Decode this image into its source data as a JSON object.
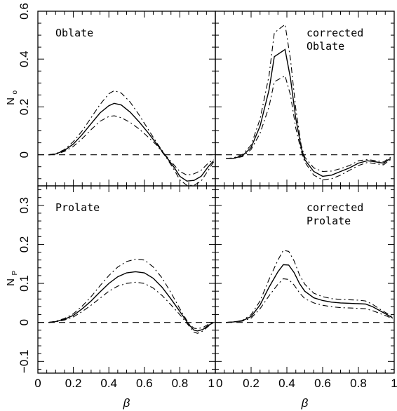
{
  "chart_data": [
    {
      "type": "line",
      "panel": "top-left",
      "annotation": [
        "Oblate"
      ],
      "ylabel": "N",
      "ylabel_subscript": "o",
      "xlabel": "",
      "xlim": [
        0,
        1
      ],
      "ylim": [
        -0.13,
        0.6
      ],
      "yticks": [
        "0",
        "0.2",
        "0.4",
        "0.6"
      ],
      "xticks": [],
      "series": [
        {
          "style": "solid",
          "x": [
            0.06,
            0.1,
            0.15,
            0.2,
            0.25,
            0.3,
            0.35,
            0.4,
            0.43,
            0.47,
            0.52,
            0.57,
            0.62,
            0.67,
            0.72,
            0.77,
            0.8,
            0.84,
            0.88,
            0.92,
            0.96,
            0.99
          ],
          "y": [
            0,
            0.003,
            0.018,
            0.045,
            0.085,
            0.13,
            0.175,
            0.205,
            0.215,
            0.208,
            0.178,
            0.138,
            0.093,
            0.045,
            -0.005,
            -0.055,
            -0.09,
            -0.11,
            -0.107,
            -0.09,
            -0.05,
            -0.025
          ]
        },
        {
          "style": "dash-dot",
          "x": [
            0.06,
            0.1,
            0.15,
            0.2,
            0.25,
            0.3,
            0.35,
            0.4,
            0.43,
            0.47,
            0.52,
            0.57,
            0.62,
            0.67,
            0.72,
            0.77,
            0.8,
            0.84,
            0.88,
            0.92,
            0.96,
            0.99
          ],
          "y": [
            0,
            0.004,
            0.022,
            0.055,
            0.1,
            0.155,
            0.21,
            0.255,
            0.268,
            0.258,
            0.22,
            0.167,
            0.108,
            0.05,
            -0.003,
            -0.045,
            -0.07,
            -0.085,
            -0.08,
            -0.065,
            -0.035,
            -0.02
          ]
        },
        {
          "style": "dash-dot",
          "x": [
            0.06,
            0.1,
            0.15,
            0.2,
            0.25,
            0.3,
            0.35,
            0.4,
            0.43,
            0.47,
            0.52,
            0.57,
            0.62,
            0.67,
            0.72,
            0.77,
            0.8,
            0.84,
            0.88,
            0.92,
            0.96,
            0.99
          ],
          "y": [
            0,
            0.002,
            0.014,
            0.035,
            0.068,
            0.105,
            0.14,
            0.16,
            0.163,
            0.155,
            0.135,
            0.108,
            0.075,
            0.04,
            -0.008,
            -0.065,
            -0.105,
            -0.128,
            -0.128,
            -0.11,
            -0.065,
            -0.03
          ]
        },
        {
          "style": "dashed",
          "x": [
            0,
            1
          ],
          "y": [
            0,
            0
          ]
        }
      ]
    },
    {
      "type": "line",
      "panel": "top-right",
      "annotation": [
        "corrected",
        "Oblate"
      ],
      "ylabel": "",
      "xlabel": "",
      "xlim": [
        0,
        1
      ],
      "ylim": [
        -0.13,
        0.6
      ],
      "yticks": [],
      "xticks": [],
      "series": [
        {
          "style": "solid",
          "x": [
            0.06,
            0.1,
            0.15,
            0.2,
            0.25,
            0.3,
            0.33,
            0.39,
            0.42,
            0.45,
            0.48,
            0.5,
            0.55,
            0.6,
            0.65,
            0.7,
            0.75,
            0.8,
            0.85,
            0.9,
            0.94,
            0.98
          ],
          "y": [
            -0.015,
            -0.015,
            -0.005,
            0.03,
            0.12,
            0.27,
            0.41,
            0.44,
            0.32,
            0.15,
            0.03,
            -0.02,
            -0.07,
            -0.09,
            -0.085,
            -0.07,
            -0.055,
            -0.035,
            -0.025,
            -0.03,
            -0.035,
            -0.015
          ]
        },
        {
          "style": "dash-dot",
          "x": [
            0.06,
            0.1,
            0.15,
            0.2,
            0.25,
            0.3,
            0.33,
            0.39,
            0.42,
            0.45,
            0.48,
            0.5,
            0.55,
            0.6,
            0.65,
            0.7,
            0.75,
            0.8,
            0.85,
            0.9,
            0.94,
            0.98
          ],
          "y": [
            -0.015,
            -0.013,
            0,
            0.04,
            0.15,
            0.33,
            0.51,
            0.545,
            0.4,
            0.19,
            0.04,
            -0.01,
            -0.055,
            -0.07,
            -0.068,
            -0.058,
            -0.045,
            -0.025,
            -0.02,
            -0.025,
            -0.03,
            -0.01
          ]
        },
        {
          "style": "dash-dot",
          "x": [
            0.06,
            0.1,
            0.15,
            0.2,
            0.25,
            0.3,
            0.33,
            0.39,
            0.42,
            0.45,
            0.48,
            0.5,
            0.55,
            0.6,
            0.65,
            0.7,
            0.75,
            0.8,
            0.85,
            0.9,
            0.94,
            0.98
          ],
          "y": [
            -0.015,
            -0.016,
            -0.008,
            0.022,
            0.09,
            0.2,
            0.305,
            0.33,
            0.25,
            0.11,
            0.015,
            -0.03,
            -0.085,
            -0.105,
            -0.1,
            -0.085,
            -0.065,
            -0.045,
            -0.032,
            -0.038,
            -0.042,
            -0.02
          ]
        },
        {
          "style": "dashed",
          "x": [
            0,
            1
          ],
          "y": [
            0,
            0
          ]
        }
      ]
    },
    {
      "type": "line",
      "panel": "bottom-left",
      "annotation": [
        "Prolate"
      ],
      "ylabel": "N",
      "ylabel_subscript": "P",
      "xlabel": "β",
      "xlim": [
        0,
        1
      ],
      "ylim": [
        -0.13,
        0.35
      ],
      "yticks": [
        "−0.1",
        "0",
        "0.1",
        "0.2",
        "0.3"
      ],
      "xticks": [
        "0",
        "0.2",
        "0.4",
        "0.6",
        "0.8",
        "1"
      ],
      "series": [
        {
          "style": "solid",
          "x": [
            0.06,
            0.1,
            0.15,
            0.2,
            0.25,
            0.3,
            0.35,
            0.4,
            0.45,
            0.5,
            0.55,
            0.6,
            0.65,
            0.7,
            0.75,
            0.8,
            0.85,
            0.88,
            0.9,
            0.93,
            0.96,
            0.99
          ],
          "y": [
            0,
            0.002,
            0.008,
            0.018,
            0.035,
            0.055,
            0.078,
            0.1,
            0.117,
            0.127,
            0.13,
            0.127,
            0.113,
            0.09,
            0.06,
            0.028,
            -0.005,
            -0.02,
            -0.022,
            -0.018,
            -0.008,
            0
          ]
        },
        {
          "style": "dash-dot",
          "x": [
            0.06,
            0.1,
            0.15,
            0.2,
            0.25,
            0.3,
            0.35,
            0.4,
            0.45,
            0.5,
            0.55,
            0.6,
            0.65,
            0.7,
            0.75,
            0.8,
            0.85,
            0.88,
            0.9,
            0.93,
            0.96,
            0.99
          ],
          "y": [
            0,
            0.003,
            0.01,
            0.022,
            0.042,
            0.066,
            0.094,
            0.12,
            0.142,
            0.156,
            0.162,
            0.16,
            0.142,
            0.114,
            0.076,
            0.035,
            -0.003,
            -0.015,
            -0.016,
            -0.013,
            -0.005,
            0
          ]
        },
        {
          "style": "dash-dot",
          "x": [
            0.06,
            0.1,
            0.15,
            0.2,
            0.25,
            0.3,
            0.35,
            0.4,
            0.45,
            0.5,
            0.55,
            0.6,
            0.65,
            0.7,
            0.75,
            0.8,
            0.85,
            0.88,
            0.9,
            0.93,
            0.96,
            0.99
          ],
          "y": [
            0,
            0.001,
            0.006,
            0.014,
            0.028,
            0.044,
            0.062,
            0.08,
            0.093,
            0.1,
            0.103,
            0.1,
            0.088,
            0.069,
            0.045,
            0.02,
            -0.008,
            -0.025,
            -0.028,
            -0.022,
            -0.01,
            0
          ]
        },
        {
          "style": "dashed",
          "x": [
            0,
            1
          ],
          "y": [
            0,
            0
          ]
        }
      ]
    },
    {
      "type": "line",
      "panel": "bottom-right",
      "annotation": [
        "corrected",
        "Prolate"
      ],
      "ylabel": "",
      "xlabel": "β",
      "xlim": [
        0,
        1
      ],
      "ylim": [
        -0.13,
        0.35
      ],
      "yticks": [],
      "xticks": [
        "0",
        "0.2",
        "0.4",
        "0.6",
        "0.8",
        "1"
      ],
      "series": [
        {
          "style": "solid",
          "x": [
            0.06,
            0.1,
            0.15,
            0.2,
            0.25,
            0.3,
            0.35,
            0.38,
            0.41,
            0.44,
            0.47,
            0.5,
            0.55,
            0.6,
            0.65,
            0.7,
            0.75,
            0.8,
            0.84,
            0.88,
            0.92,
            0.96,
            0.99
          ],
          "y": [
            0,
            0.001,
            0.004,
            0.015,
            0.045,
            0.09,
            0.13,
            0.148,
            0.147,
            0.128,
            0.1,
            0.08,
            0.063,
            0.056,
            0.052,
            0.05,
            0.049,
            0.048,
            0.047,
            0.04,
            0.03,
            0.02,
            0.012
          ]
        },
        {
          "style": "dash-dot",
          "x": [
            0.06,
            0.1,
            0.15,
            0.2,
            0.25,
            0.3,
            0.35,
            0.38,
            0.41,
            0.44,
            0.47,
            0.5,
            0.55,
            0.6,
            0.65,
            0.7,
            0.75,
            0.8,
            0.84,
            0.88,
            0.92,
            0.96,
            0.99
          ],
          "y": [
            0,
            0.001,
            0.005,
            0.02,
            0.055,
            0.11,
            0.16,
            0.185,
            0.182,
            0.158,
            0.122,
            0.098,
            0.075,
            0.066,
            0.061,
            0.059,
            0.058,
            0.057,
            0.055,
            0.046,
            0.034,
            0.023,
            0.014
          ]
        },
        {
          "style": "dash-dot",
          "x": [
            0.06,
            0.1,
            0.15,
            0.2,
            0.25,
            0.3,
            0.35,
            0.38,
            0.41,
            0.44,
            0.47,
            0.5,
            0.55,
            0.6,
            0.65,
            0.7,
            0.75,
            0.8,
            0.84,
            0.88,
            0.92,
            0.96,
            0.99
          ],
          "y": [
            0,
            0.001,
            0.003,
            0.011,
            0.035,
            0.068,
            0.098,
            0.112,
            0.11,
            0.096,
            0.076,
            0.061,
            0.05,
            0.044,
            0.04,
            0.038,
            0.037,
            0.036,
            0.035,
            0.03,
            0.023,
            0.016,
            0.009
          ]
        },
        {
          "style": "dashed",
          "x": [
            0,
            1
          ],
          "y": [
            0,
            0
          ]
        }
      ]
    }
  ]
}
